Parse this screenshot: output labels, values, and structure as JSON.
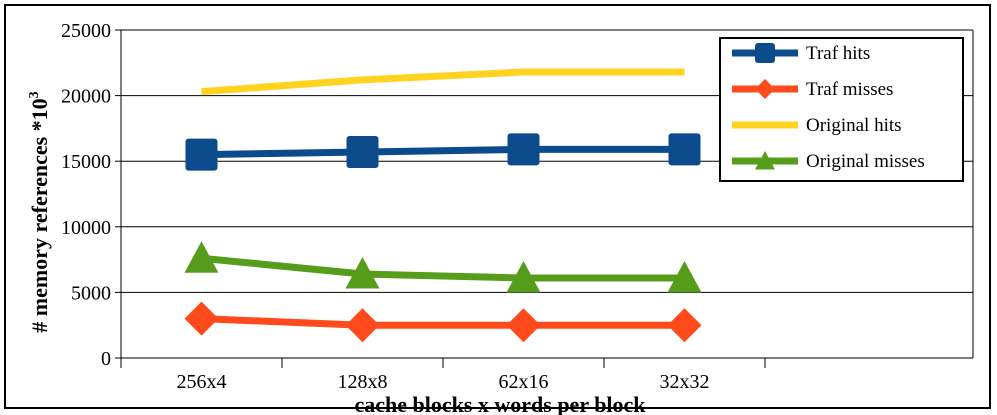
{
  "chart_data": {
    "type": "line",
    "categories": [
      "256x4",
      "128x8",
      "62x16",
      "32x32"
    ],
    "series": [
      {
        "name": "Traf hits",
        "color": "#0b4a8b",
        "marker": "square",
        "values": [
          15500,
          15700,
          15900,
          15900
        ]
      },
      {
        "name": "Traf misses",
        "color": "#ff4a1c",
        "marker": "diamond",
        "values": [
          3000,
          2500,
          2500,
          2500
        ]
      },
      {
        "name": "Original hits",
        "color": "#ffd320",
        "marker": "none",
        "values": [
          20300,
          21200,
          21800,
          21800
        ]
      },
      {
        "name": "Original misses",
        "color": "#579d1c",
        "marker": "triangle",
        "values": [
          7600,
          6400,
          6100,
          6100
        ]
      }
    ],
    "yticks": [
      "0",
      "5000",
      "10000",
      "15000",
      "20000",
      "25000"
    ],
    "ylim": [
      0,
      25000
    ],
    "xlabel": "cache blocks x words per block",
    "ylabel_main": "# memory references *10",
    "ylabel_sup": "3",
    "grid": true,
    "legend_position": "top-right"
  }
}
